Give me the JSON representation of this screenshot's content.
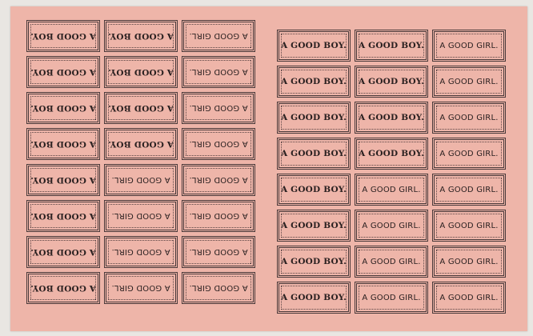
{
  "paper_color": "#eeb5a9",
  "left_block": {
    "orientation": "upside-down",
    "rows": [
      [
        "A GOOD GIRL.",
        "A GOOD GIRL.",
        "A GOOD BOY."
      ],
      [
        "A GOOD GIRL.",
        "A GOOD GIRL.",
        "A GOOD BOY."
      ],
      [
        "A GOOD GIRL.",
        "A GOOD GIRL.",
        "A GOOD BOY."
      ],
      [
        "A GOOD GIRL.",
        "A GOOD GIRL.",
        "A GOOD BOY."
      ],
      [
        "A GOOD GIRL.",
        "A GOOD BOY.",
        "A GOOD BOY."
      ],
      [
        "A GOOD GIRL.",
        "A GOOD BOY.",
        "A GOOD BOY."
      ],
      [
        "A GOOD GIRL.",
        "A GOOD BOY.",
        "A GOOD BOY."
      ],
      [
        "A GOOD GIRL.",
        "A GOOD BOY.",
        "A GOOD BOY."
      ]
    ]
  },
  "right_block": {
    "orientation": "upright",
    "rows": [
      [
        "A GOOD BOY.",
        "A GOOD BOY.",
        "A GOOD GIRL."
      ],
      [
        "A GOOD BOY.",
        "A GOOD BOY.",
        "A GOOD GIRL."
      ],
      [
        "A GOOD BOY.",
        "A GOOD BOY.",
        "A GOOD GIRL."
      ],
      [
        "A GOOD BOY.",
        "A GOOD BOY.",
        "A GOOD GIRL."
      ],
      [
        "A GOOD BOY.",
        "A GOOD GIRL.",
        "A GOOD GIRL."
      ],
      [
        "A GOOD BOY.",
        "A GOOD GIRL.",
        "A GOOD GIRL."
      ],
      [
        "A GOOD BOY.",
        "A GOOD GIRL.",
        "A GOOD GIRL."
      ],
      [
        "A GOOD BOY.",
        "A GOOD GIRL.",
        "A GOOD GIRL."
      ]
    ]
  }
}
